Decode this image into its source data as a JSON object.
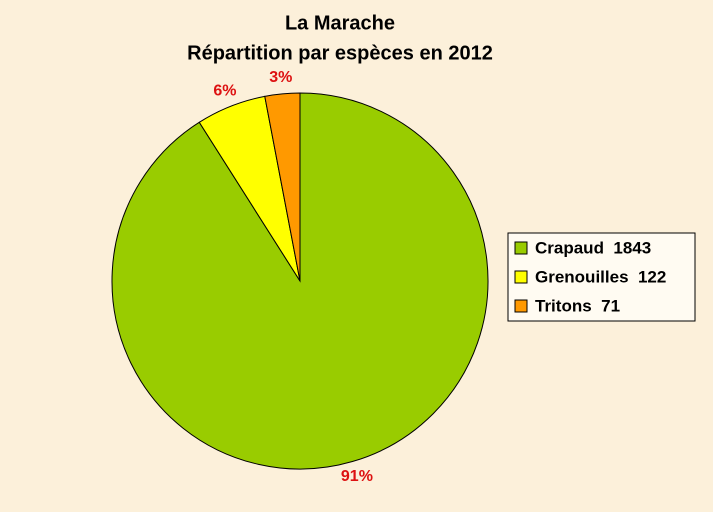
{
  "chart_data": {
    "type": "pie",
    "title": "La Marache",
    "subtitle": "Répartition par espèces en 2012",
    "categories": [
      "Crapaud  1843",
      "Grenouilles  122",
      "Tritons  71"
    ],
    "values": [
      91,
      6,
      3
    ],
    "value_labels": [
      "91%",
      "6%",
      "3%"
    ],
    "colors": [
      "#99cc00",
      "#ffff00",
      "#ff9900"
    ],
    "legend": "right"
  }
}
